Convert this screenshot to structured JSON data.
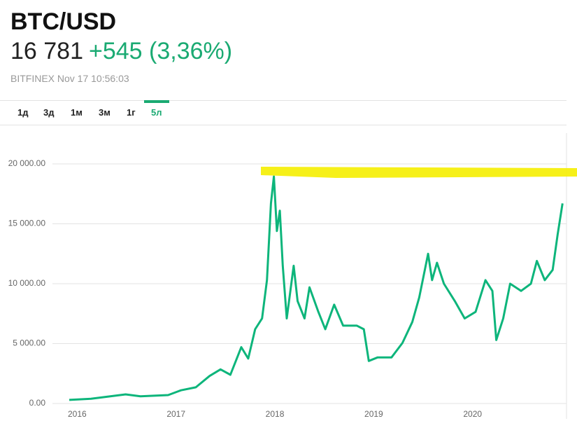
{
  "header": {
    "title": "BTC/USD",
    "price": "16 781",
    "change": "+545 (3,36%)",
    "source": "BITFINEX Nov 17 10:56:03"
  },
  "tabs": [
    "1д",
    "3д",
    "1м",
    "3м",
    "1г",
    "5л"
  ],
  "chart_data": {
    "type": "line",
    "color": "#0db57b",
    "grid": true,
    "x": [
      2015.92,
      2016.14,
      2016.49,
      2016.64,
      2016.92,
      2017.05,
      2017.2,
      2017.34,
      2017.45,
      2017.55,
      2017.66,
      2017.73,
      2017.8,
      2017.87,
      2017.92,
      2017.96,
      2017.99,
      2018.02,
      2018.05,
      2018.08,
      2018.12,
      2018.19,
      2018.23,
      2018.3,
      2018.35,
      2018.44,
      2018.51,
      2018.6,
      2018.69,
      2018.83,
      2018.9,
      2018.95,
      2019.04,
      2019.18,
      2019.29,
      2019.39,
      2019.46,
      2019.55,
      2019.59,
      2019.64,
      2019.71,
      2019.82,
      2019.92,
      2020.03,
      2020.13,
      2020.2,
      2020.24,
      2020.31,
      2020.38,
      2020.49,
      2020.59,
      2020.65,
      2020.73,
      2020.81,
      2020.86,
      2020.91
    ],
    "values": [
      300,
      400,
      760,
      600,
      700,
      1100,
      1350,
      2300,
      2850,
      2400,
      4700,
      3750,
      6200,
      7100,
      10300,
      16700,
      18950,
      14400,
      16100,
      11500,
      7100,
      11500,
      8550,
      7100,
      9700,
      7650,
      6200,
      8250,
      6500,
      6500,
      6200,
      3550,
      3850,
      3850,
      5050,
      6800,
      8850,
      12500,
      10300,
      11750,
      10000,
      8550,
      7100,
      7650,
      10300,
      9400,
      5300,
      7100,
      10000,
      9400,
      10000,
      11900,
      10300,
      11150,
      14100,
      16700
    ],
    "xlim": [
      2015.75,
      2020.95
    ],
    "xticks": [
      2016,
      2017,
      2018,
      2019,
      2020
    ],
    "ylim": [
      0,
      20000
    ],
    "yticks": [
      {
        "value": 0,
        "label": "0.00"
      },
      {
        "value": 5000,
        "label": "5 000.00"
      },
      {
        "value": 10000,
        "label": "10 000.00"
      },
      {
        "value": 15000,
        "label": "15 000.00"
      },
      {
        "value": 20000,
        "label": "20 000.00"
      }
    ]
  }
}
